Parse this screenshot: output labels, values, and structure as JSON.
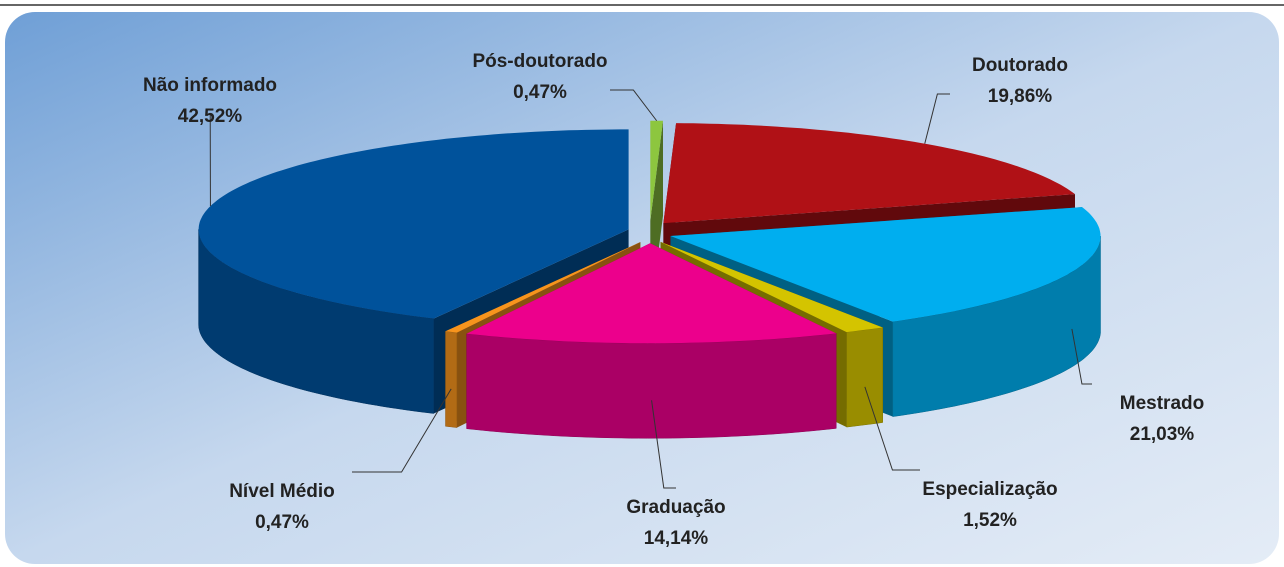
{
  "chart_data": {
    "type": "pie",
    "categories": [
      "Pós-doutorado",
      "Doutorado",
      "Mestrado",
      "Especialização",
      "Graduação",
      "Nível Médio",
      "Não informado"
    ],
    "values": [
      0.47,
      19.86,
      21.03,
      1.52,
      14.14,
      0.47,
      42.52
    ],
    "value_labels": [
      "0,47%",
      "19,86%",
      "21,03%",
      "1,52%",
      "14,14%",
      "0,47%",
      "42,52%"
    ],
    "colors": [
      "#8dc63f",
      "#b01116",
      "#00aeef",
      "#d4c400",
      "#ec008c",
      "#f7941d",
      "#00529b"
    ]
  }
}
